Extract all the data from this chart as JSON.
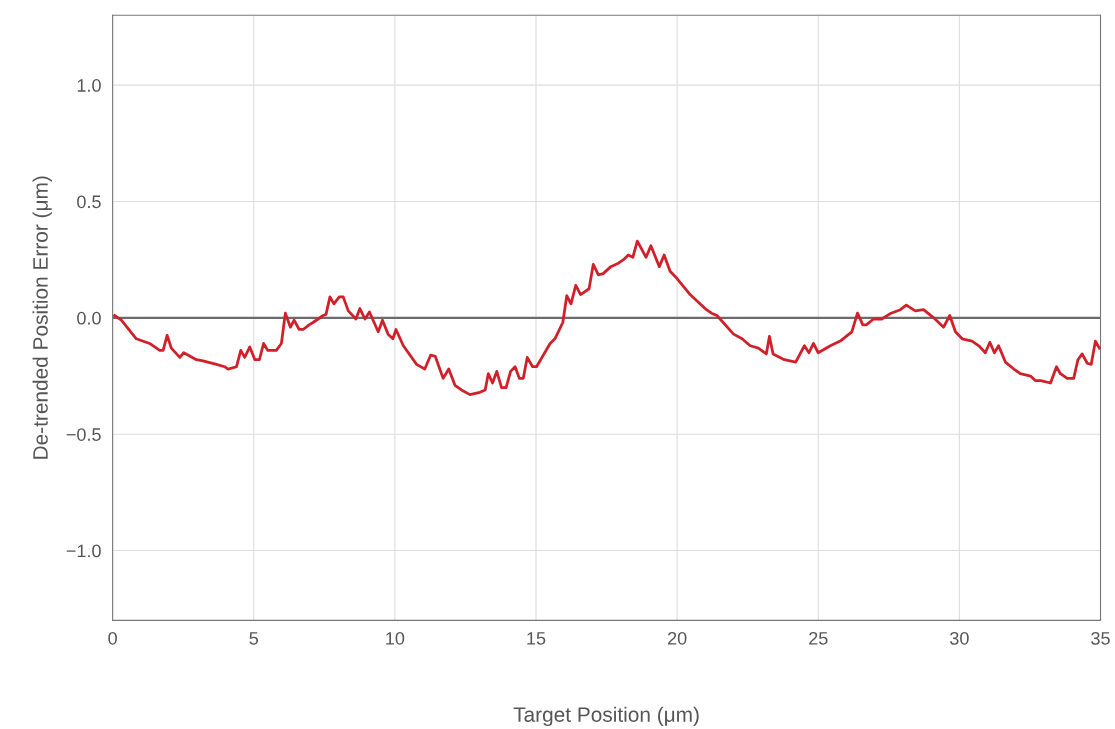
{
  "chart_data": {
    "type": "line",
    "xlabel": "Target Position (μm)",
    "ylabel": "De-trended Position Error (μm)",
    "xlim": [
      0,
      35
    ],
    "ylim": [
      -1.3,
      1.3
    ],
    "xticks": [
      0,
      5,
      10,
      15,
      20,
      25,
      30,
      35
    ],
    "yticks": [
      {
        "value": -1.0,
        "label": "−1.0"
      },
      {
        "value": -0.5,
        "label": "−0.5"
      },
      {
        "value": 0.0,
        "label": "0.0"
      },
      {
        "value": 0.5,
        "label": "0.5"
      },
      {
        "value": 1.0,
        "label": "1.0"
      }
    ],
    "grid": true,
    "marker": "none",
    "line_style": "solid",
    "ref_lines": [
      {
        "axis": "y",
        "value": 0,
        "label": null,
        "color": "#6b6b6b"
      }
    ],
    "series": [
      {
        "color": "#d0202a",
        "x": [
          0.07,
          0.31,
          0.84,
          1.31,
          1.67,
          1.79,
          1.93,
          2.08,
          2.38,
          2.52,
          2.97,
          3.2,
          3.68,
          3.97,
          4.09,
          4.39,
          4.54,
          4.68,
          4.86,
          5.04,
          5.2,
          5.35,
          5.5,
          5.8,
          5.98,
          6.12,
          6.3,
          6.43,
          6.61,
          6.75,
          6.96,
          7.1,
          7.46,
          7.56,
          7.7,
          7.84,
          8.03,
          8.17,
          8.35,
          8.62,
          8.76,
          8.94,
          9.1,
          9.41,
          9.56,
          9.76,
          9.93,
          10.04,
          10.3,
          10.77,
          11.06,
          11.27,
          11.43,
          11.71,
          11.91,
          12.13,
          12.36,
          12.66,
          13.01,
          13.2,
          13.31,
          13.46,
          13.61,
          13.78,
          13.94,
          14.1,
          14.26,
          14.41,
          14.55,
          14.69,
          14.88,
          15.02,
          15.5,
          15.67,
          15.95,
          16.09,
          16.24,
          16.41,
          16.58,
          16.88,
          17.03,
          17.21,
          17.38,
          17.65,
          17.92,
          18.1,
          18.27,
          18.43,
          18.59,
          18.9,
          19.07,
          19.37,
          19.54,
          19.75,
          19.99,
          20.46,
          20.64,
          20.99,
          21.22,
          21.41,
          22.0,
          22.3,
          22.59,
          22.88,
          23.16,
          23.27,
          23.4,
          23.8,
          24.2,
          24.51,
          24.67,
          24.83,
          25.0,
          25.43,
          25.78,
          26.19,
          26.39,
          26.58,
          26.7,
          26.96,
          27.25,
          27.58,
          27.91,
          28.12,
          28.44,
          28.73,
          29.09,
          29.44,
          29.66,
          29.86,
          30.1,
          30.45,
          30.69,
          30.92,
          31.08,
          31.24,
          31.39,
          31.63,
          31.93,
          32.16,
          32.52,
          32.7,
          32.88,
          33.23,
          33.44,
          33.58,
          33.82,
          34.05,
          34.2,
          34.35,
          34.53,
          34.67,
          34.82,
          34.96
        ],
        "values": [
          0.01,
          -0.01,
          -0.09,
          -0.11,
          -0.14,
          -0.14,
          -0.075,
          -0.13,
          -0.17,
          -0.15,
          -0.18,
          -0.185,
          -0.2,
          -0.21,
          -0.22,
          -0.21,
          -0.14,
          -0.17,
          -0.125,
          -0.18,
          -0.18,
          -0.11,
          -0.14,
          -0.14,
          -0.11,
          0.02,
          -0.04,
          -0.01,
          -0.05,
          -0.05,
          -0.03,
          -0.02,
          0.01,
          0.015,
          0.09,
          0.06,
          0.09,
          0.09,
          0.03,
          -0.005,
          0.04,
          -0.005,
          0.025,
          -0.06,
          -0.01,
          -0.07,
          -0.09,
          -0.05,
          -0.12,
          -0.2,
          -0.22,
          -0.16,
          -0.165,
          -0.26,
          -0.22,
          -0.29,
          -0.31,
          -0.33,
          -0.32,
          -0.31,
          -0.24,
          -0.28,
          -0.23,
          -0.3,
          -0.3,
          -0.23,
          -0.21,
          -0.26,
          -0.26,
          -0.17,
          -0.21,
          -0.21,
          -0.11,
          -0.09,
          -0.02,
          0.095,
          0.06,
          0.14,
          0.1,
          0.125,
          0.23,
          0.185,
          0.19,
          0.22,
          0.235,
          0.25,
          0.27,
          0.26,
          0.33,
          0.26,
          0.31,
          0.22,
          0.27,
          0.2,
          0.17,
          0.1,
          0.08,
          0.04,
          0.02,
          0.01,
          -0.07,
          -0.09,
          -0.12,
          -0.13,
          -0.155,
          -0.08,
          -0.155,
          -0.18,
          -0.19,
          -0.12,
          -0.15,
          -0.11,
          -0.15,
          -0.12,
          -0.1,
          -0.06,
          0.02,
          -0.03,
          -0.03,
          -0.005,
          -0.005,
          0.02,
          0.035,
          0.055,
          0.03,
          0.035,
          0.0,
          -0.04,
          0.01,
          -0.06,
          -0.09,
          -0.1,
          -0.12,
          -0.15,
          -0.105,
          -0.15,
          -0.12,
          -0.19,
          -0.22,
          -0.24,
          -0.25,
          -0.27,
          -0.27,
          -0.28,
          -0.21,
          -0.24,
          -0.26,
          -0.26,
          -0.18,
          -0.155,
          -0.195,
          -0.2,
          -0.1,
          -0.13
        ]
      }
    ]
  }
}
